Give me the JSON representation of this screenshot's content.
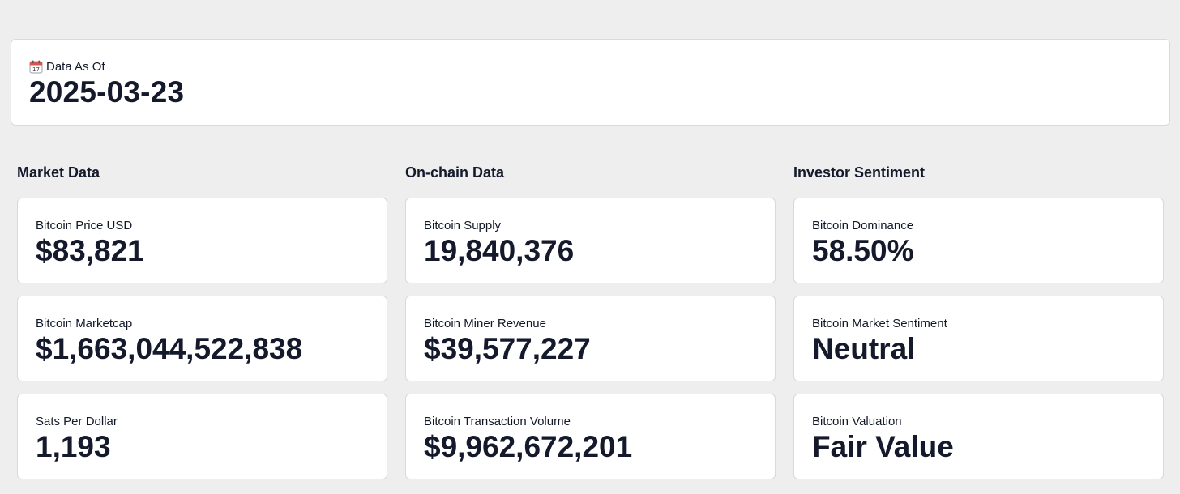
{
  "header": {
    "label": "Data As Of",
    "date": "2025-03-23"
  },
  "sections": [
    {
      "title": "Market Data",
      "cards": [
        {
          "label": "Bitcoin Price USD",
          "value": "$83,821"
        },
        {
          "label": "Bitcoin Marketcap",
          "value": "$1,663,044,522,838"
        },
        {
          "label": "Sats Per Dollar",
          "value": "1,193"
        }
      ]
    },
    {
      "title": "On-chain Data",
      "cards": [
        {
          "label": "Bitcoin Supply",
          "value": "19,840,376"
        },
        {
          "label": "Bitcoin Miner Revenue",
          "value": "$39,577,227"
        },
        {
          "label": "Bitcoin Transaction Volume",
          "value": "$9,962,672,201"
        }
      ]
    },
    {
      "title": "Investor Sentiment",
      "cards": [
        {
          "label": "Bitcoin Dominance",
          "value": "58.50%"
        },
        {
          "label": "Bitcoin Market Sentiment",
          "value": "Neutral"
        },
        {
          "label": "Bitcoin Valuation",
          "value": "Fair Value"
        }
      ]
    }
  ],
  "icons": {
    "date_label_icon": "calendar-icon"
  },
  "colors": {
    "background": "#eeeeee",
    "card": "#ffffff",
    "text": "#141a2b",
    "calendar_red": "#d9534f"
  }
}
